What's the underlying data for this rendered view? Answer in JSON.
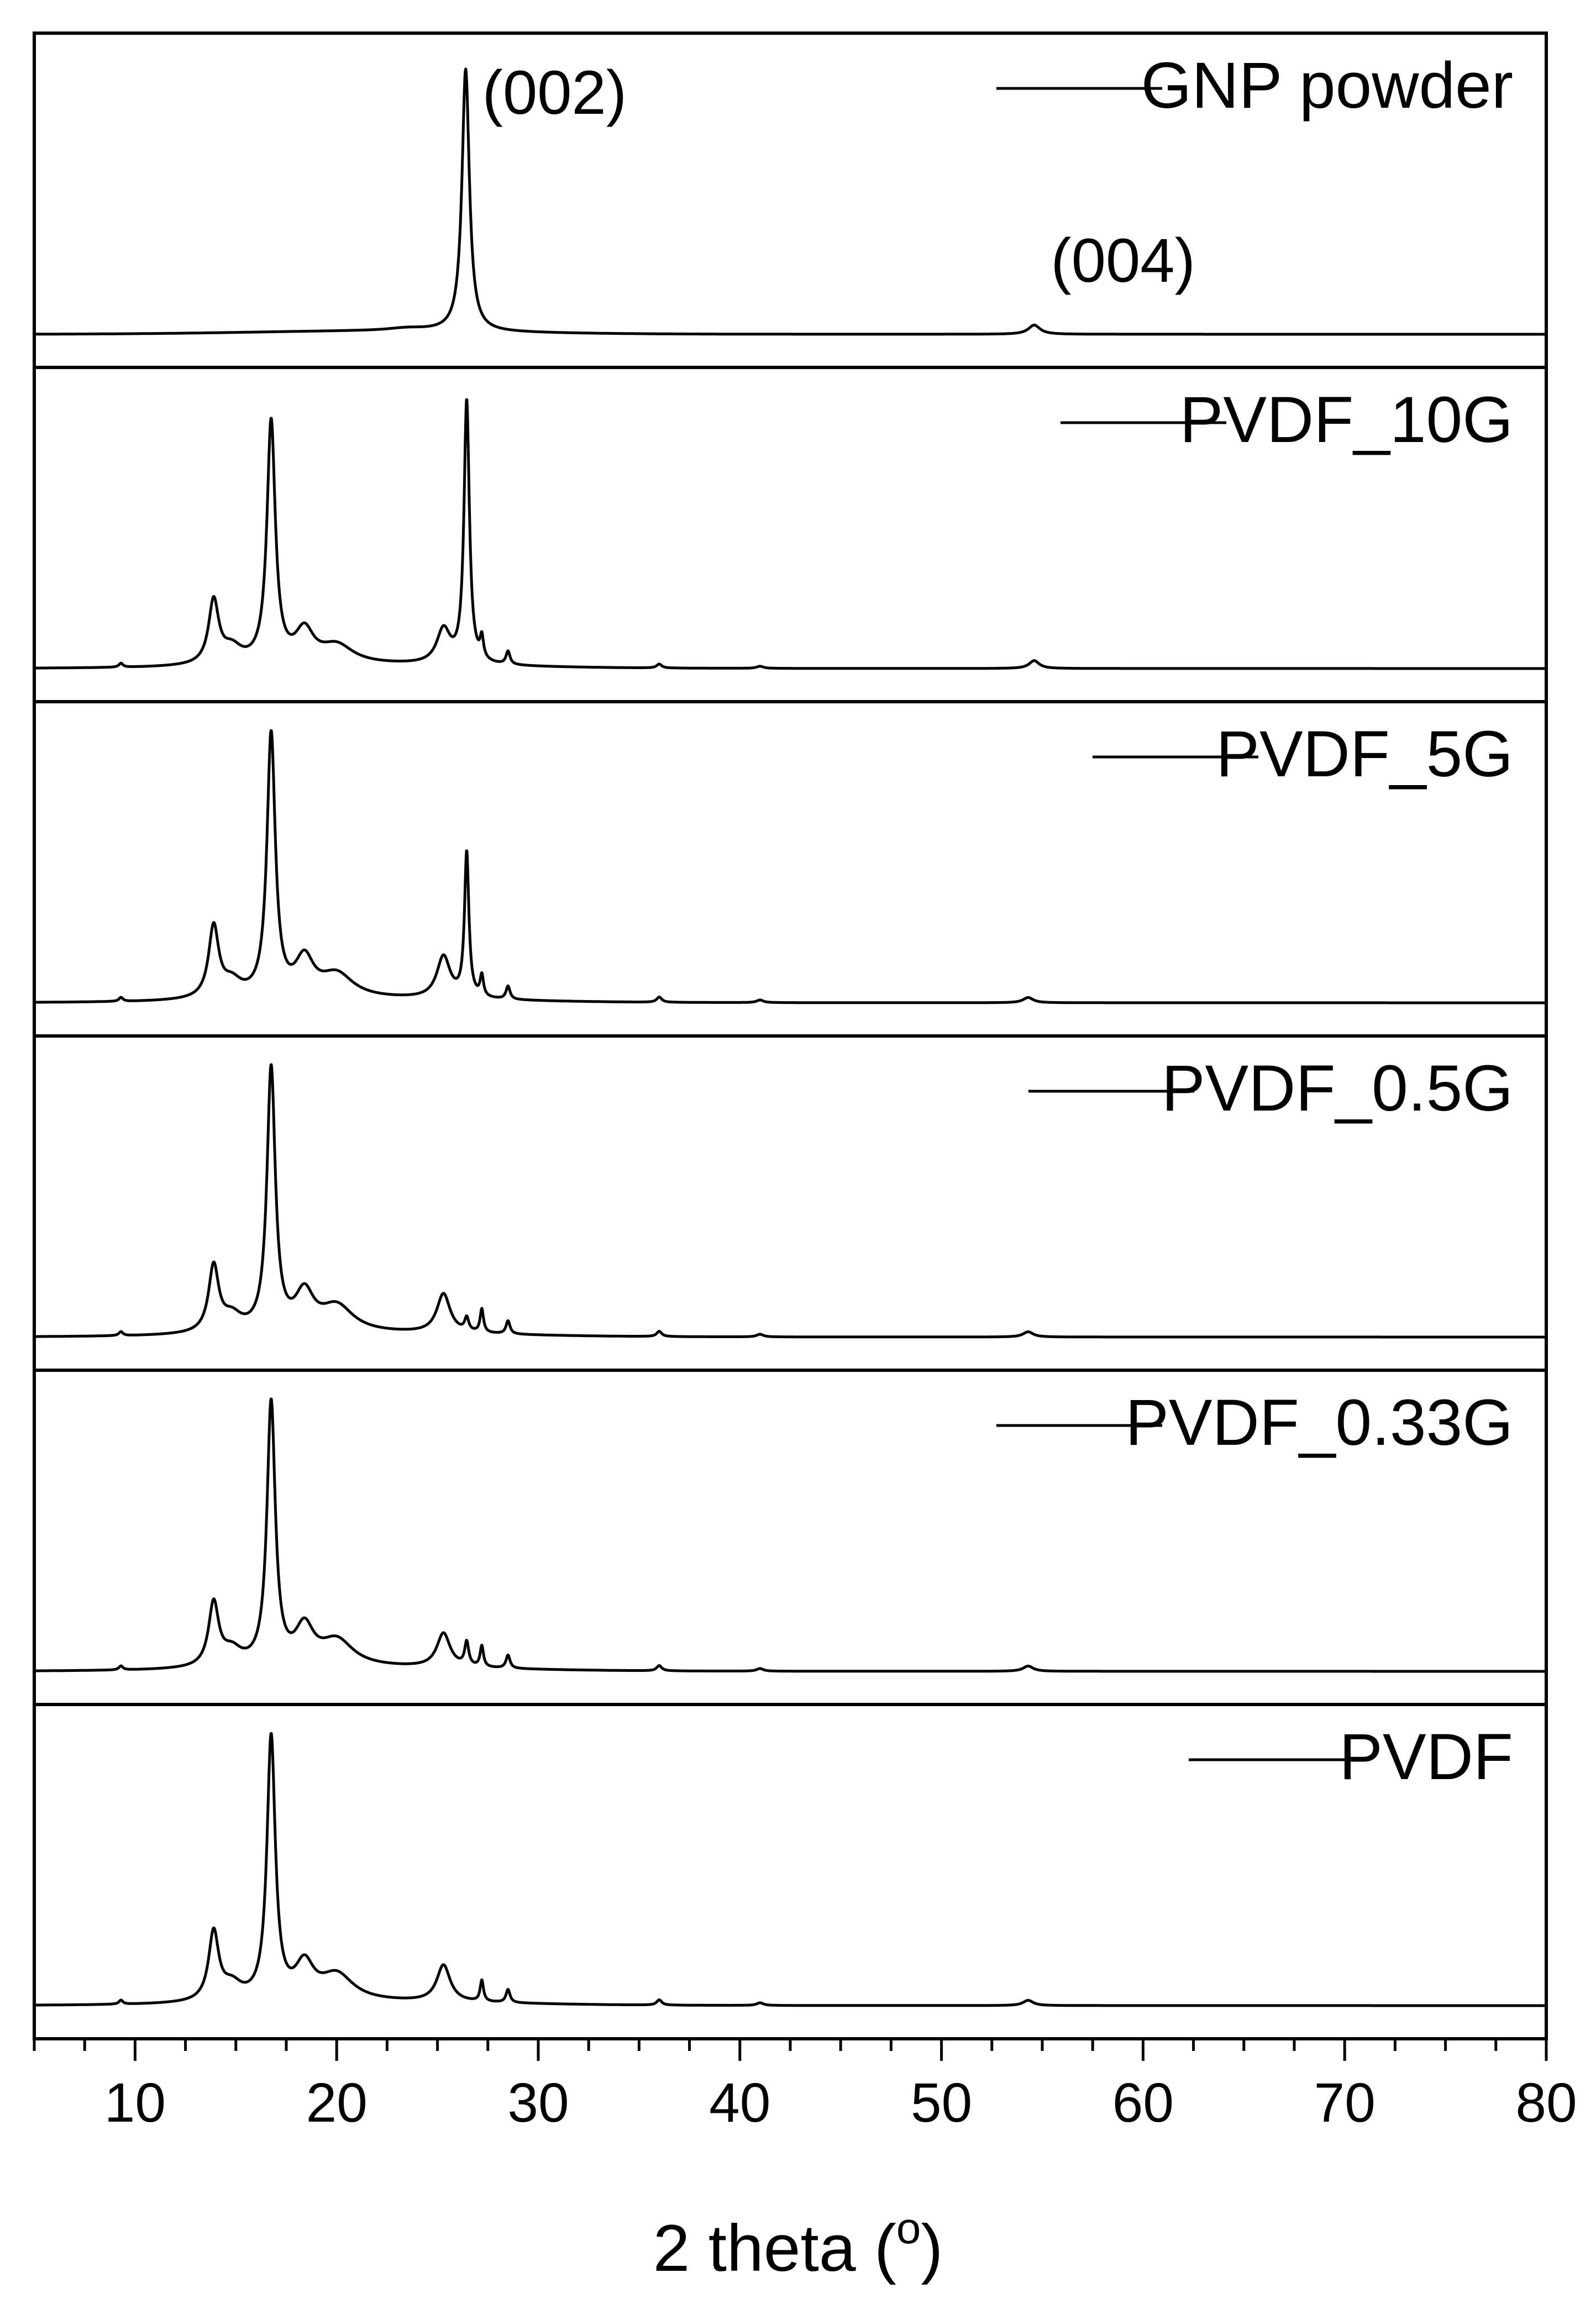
{
  "chart_data": {
    "type": "line",
    "layout": "stacked-panels",
    "xlabel": "2 theta (o)",
    "xlabel_parts": {
      "main": "2 theta (",
      "superscript": "o",
      "close": ")"
    },
    "xlim": [
      5,
      80
    ],
    "xticks": [
      10,
      20,
      30,
      40,
      50,
      60,
      70,
      80
    ],
    "x_minor_step": 2.5,
    "y_axis": "intensity (arbitrary units, unlabeled)",
    "legend_placement": "top-right of each panel",
    "line_color": "#000000",
    "series": [
      {
        "name": "GNP powder",
        "baseline": 0.02,
        "peaks": [
          [
            23.5,
            0.01,
            1.2
          ],
          [
            26.4,
            1.0,
            0.22
          ],
          [
            54.6,
            0.035,
            0.35
          ]
        ],
        "annotations": [
          {
            "label": "(002)",
            "x": 26.4,
            "y": 0.86
          },
          {
            "label": "(004)",
            "x": 54.6,
            "y": 0.22
          }
        ]
      },
      {
        "name": "PVDF_10G",
        "baseline": 0.02,
        "peaks": [
          [
            9.3,
            0.015,
            0.12
          ],
          [
            13.9,
            0.24,
            0.3
          ],
          [
            14.8,
            0.06,
            0.6
          ],
          [
            16.75,
            0.92,
            0.25
          ],
          [
            18.4,
            0.12,
            0.55
          ],
          [
            20.0,
            0.07,
            1.0
          ],
          [
            25.3,
            0.13,
            0.4
          ],
          [
            26.45,
            1.0,
            0.16
          ],
          [
            27.2,
            0.08,
            0.1
          ],
          [
            28.5,
            0.05,
            0.12
          ],
          [
            36.0,
            0.015,
            0.15
          ],
          [
            41.0,
            0.008,
            0.2
          ],
          [
            54.6,
            0.03,
            0.3
          ]
        ]
      },
      {
        "name": "PVDF_5G",
        "baseline": 0.02,
        "peaks": [
          [
            9.3,
            0.015,
            0.12
          ],
          [
            13.9,
            0.27,
            0.3
          ],
          [
            14.8,
            0.06,
            0.6
          ],
          [
            16.75,
            1.0,
            0.25
          ],
          [
            18.4,
            0.14,
            0.55
          ],
          [
            20.0,
            0.09,
            1.0
          ],
          [
            25.3,
            0.16,
            0.4
          ],
          [
            26.45,
            0.55,
            0.13
          ],
          [
            27.2,
            0.08,
            0.1
          ],
          [
            28.5,
            0.05,
            0.12
          ],
          [
            36.0,
            0.02,
            0.15
          ],
          [
            41.0,
            0.01,
            0.2
          ],
          [
            54.3,
            0.02,
            0.3
          ]
        ]
      },
      {
        "name": "PVDF_0.5G",
        "baseline": 0.02,
        "peaks": [
          [
            9.3,
            0.015,
            0.12
          ],
          [
            13.9,
            0.25,
            0.3
          ],
          [
            14.8,
            0.06,
            0.6
          ],
          [
            16.75,
            1.0,
            0.25
          ],
          [
            18.4,
            0.14,
            0.55
          ],
          [
            20.0,
            0.1,
            1.0
          ],
          [
            25.3,
            0.15,
            0.4
          ],
          [
            26.45,
            0.05,
            0.12
          ],
          [
            27.2,
            0.09,
            0.1
          ],
          [
            28.5,
            0.05,
            0.12
          ],
          [
            36.0,
            0.02,
            0.15
          ],
          [
            41.0,
            0.01,
            0.2
          ],
          [
            54.3,
            0.02,
            0.3
          ]
        ]
      },
      {
        "name": "PVDF_0.33G",
        "baseline": 0.02,
        "peaks": [
          [
            9.3,
            0.015,
            0.12
          ],
          [
            13.9,
            0.24,
            0.3
          ],
          [
            14.8,
            0.06,
            0.6
          ],
          [
            16.75,
            1.0,
            0.25
          ],
          [
            18.4,
            0.14,
            0.55
          ],
          [
            20.0,
            0.1,
            1.0
          ],
          [
            25.3,
            0.13,
            0.4
          ],
          [
            26.45,
            0.09,
            0.12
          ],
          [
            27.2,
            0.08,
            0.1
          ],
          [
            28.5,
            0.05,
            0.12
          ],
          [
            36.0,
            0.02,
            0.15
          ],
          [
            41.0,
            0.01,
            0.2
          ],
          [
            54.3,
            0.02,
            0.3
          ]
        ]
      },
      {
        "name": "PVDF",
        "baseline": 0.02,
        "peaks": [
          [
            9.3,
            0.015,
            0.12
          ],
          [
            13.9,
            0.26,
            0.3
          ],
          [
            14.8,
            0.06,
            0.6
          ],
          [
            16.75,
            1.0,
            0.25
          ],
          [
            18.4,
            0.13,
            0.55
          ],
          [
            20.0,
            0.1,
            1.0
          ],
          [
            25.3,
            0.14,
            0.4
          ],
          [
            27.2,
            0.08,
            0.1
          ],
          [
            28.5,
            0.05,
            0.12
          ],
          [
            36.0,
            0.02,
            0.15
          ],
          [
            41.0,
            0.01,
            0.2
          ],
          [
            54.3,
            0.02,
            0.3
          ]
        ]
      }
    ]
  }
}
